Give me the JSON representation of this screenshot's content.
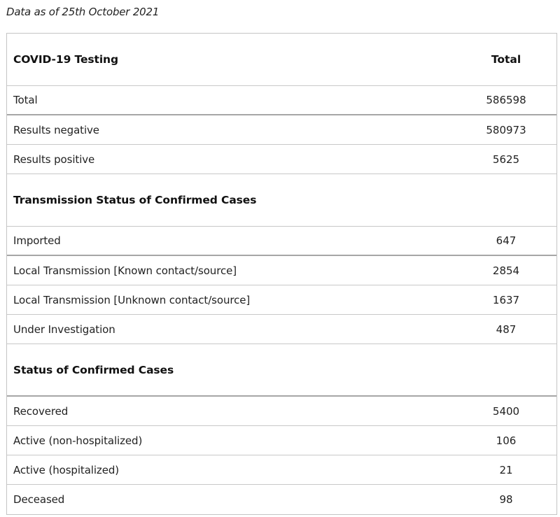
{
  "as_of": "Data as of 25th October 2021",
  "header": {
    "label": "COVID-19 Testing",
    "value": "Total"
  },
  "testing_rows": [
    {
      "label": "Total",
      "value": "586598"
    },
    {
      "label": "Results negative",
      "value": "580973"
    },
    {
      "label": "Results positive",
      "value": "5625"
    }
  ],
  "transmission_section": {
    "title": "Transmission Status of Confirmed Cases"
  },
  "transmission_rows": [
    {
      "label": "Imported",
      "value": "647"
    },
    {
      "label": "Local Transmission [Known contact/source]",
      "value": "2854"
    },
    {
      "label": "Local Transmission [Unknown contact/source]",
      "value": "1637"
    },
    {
      "label": "Under Investigation",
      "value": "487"
    }
  ],
  "status_section": {
    "title": "Status of Confirmed Cases"
  },
  "status_rows": [
    {
      "label": "Recovered",
      "value": "5400"
    },
    {
      "label": "Active (non-hospitalized)",
      "value": "106"
    },
    {
      "label": "Active (hospitalized)",
      "value": "21"
    },
    {
      "label": "Deceased",
      "value": "98"
    }
  ]
}
